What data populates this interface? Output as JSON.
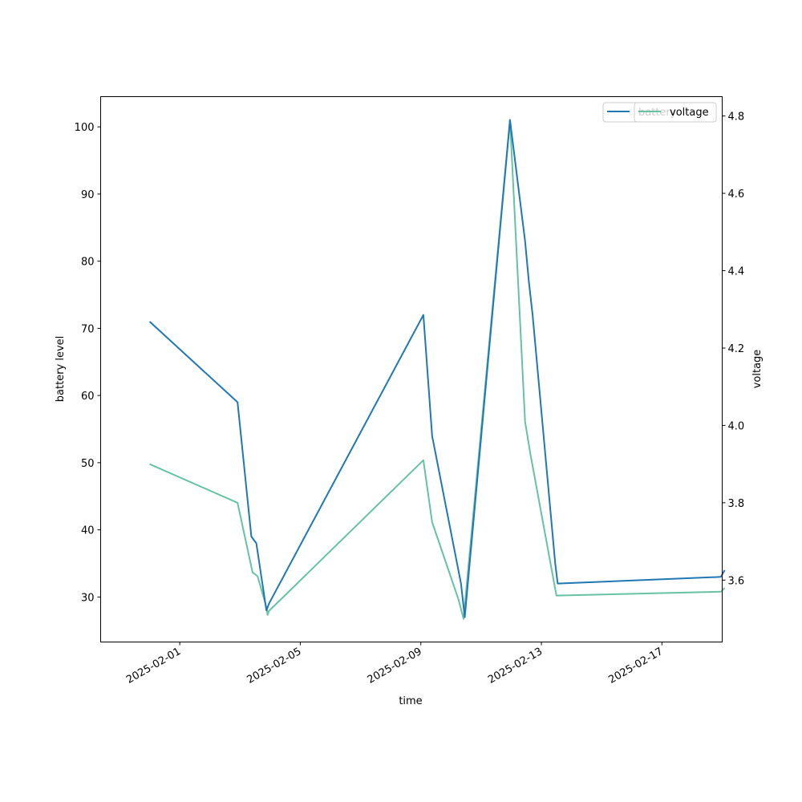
{
  "chart_data": {
    "type": "line",
    "title": "",
    "xlabel": "time",
    "ylabel": "battery level",
    "y2label": "voltage",
    "x_ticks": [
      "2025-02-01",
      "2025-02-05",
      "2025-02-09",
      "2025-02-13",
      "2025-02-17"
    ],
    "xlim": [
      "2025-01-29 09:00",
      "2025-02-19 00:00"
    ],
    "ylim": [
      23.3,
      104.5
    ],
    "y_ticks": [
      30,
      40,
      50,
      60,
      70,
      80,
      90,
      100
    ],
    "y2lim": [
      3.44,
      4.85
    ],
    "y2_ticks": [
      "3.6",
      "3.8",
      "4.0",
      "4.2",
      "4.4",
      "4.6",
      "4.8"
    ],
    "legend": {
      "placement": "top-right",
      "labels": [
        "battery",
        "voltage"
      ]
    },
    "grid": false,
    "series": [
      {
        "name": "battery",
        "axis": "left",
        "color": "#1f77b4",
        "points": [
          [
            "2025-01-31 00:00",
            71
          ],
          [
            "2025-02-02 22:00",
            59
          ],
          [
            "2025-02-03 09:00",
            39
          ],
          [
            "2025-02-03 13:00",
            38
          ],
          [
            "2025-02-03 21:00",
            28
          ],
          [
            "2025-02-03 23:00",
            29
          ],
          [
            "2025-02-09 02:00",
            72
          ],
          [
            "2025-02-09 09:00",
            54
          ],
          [
            "2025-02-10 08:00",
            32
          ],
          [
            "2025-02-10 11:00",
            27
          ],
          [
            "2025-02-11 23:00",
            101
          ],
          [
            "2025-02-12 11:00",
            83
          ],
          [
            "2025-02-12 14:00",
            77
          ],
          [
            "2025-02-12 17:00",
            72
          ],
          [
            "2025-02-13 11:00",
            35
          ],
          [
            "2025-02-13 13:00",
            32
          ],
          [
            "2025-02-18 23:00",
            33
          ],
          [
            "2025-02-19 02:00",
            34
          ]
        ]
      },
      {
        "name": "voltage",
        "axis": "right",
        "color": "#66c2a5",
        "points": [
          [
            "2025-01-31 00:00",
            3.9
          ],
          [
            "2025-02-02 22:00",
            3.8
          ],
          [
            "2025-02-03 10:00",
            3.62
          ],
          [
            "2025-02-03 14:00",
            3.61
          ],
          [
            "2025-02-03 21:00",
            3.53
          ],
          [
            "2025-02-03 22:00",
            3.51
          ],
          [
            "2025-02-03 23:00",
            3.52
          ],
          [
            "2025-02-09 02:00",
            3.91
          ],
          [
            "2025-02-09 09:00",
            3.75
          ],
          [
            "2025-02-10 06:00",
            3.55
          ],
          [
            "2025-02-10 10:00",
            3.5
          ],
          [
            "2025-02-11 23:00",
            4.79
          ],
          [
            "2025-02-12 11:00",
            4.01
          ],
          [
            "2025-02-12 15:00",
            3.93
          ],
          [
            "2025-02-13 12:00",
            3.56
          ],
          [
            "2025-02-18 23:00",
            3.57
          ],
          [
            "2025-02-19 02:00",
            3.58
          ]
        ]
      }
    ]
  }
}
